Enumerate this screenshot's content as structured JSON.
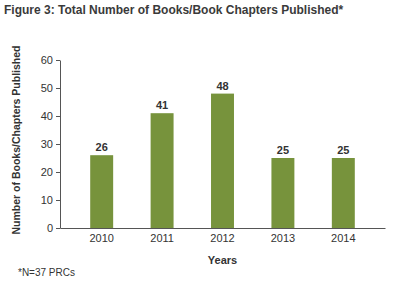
{
  "chart_data": {
    "type": "bar",
    "title": "Figure 3: Total Number of Books/Book Chapters Published*",
    "x_label": "Years",
    "y_label": "Number of Books/Chapters Published",
    "annotations": [
      "*N=37 PRCs"
    ],
    "categories": [
      "2010",
      "2011",
      "2012",
      "2013",
      "2014"
    ],
    "values": [
      26,
      41,
      48,
      25,
      25
    ],
    "color": "#77933c",
    "ylim": [
      0,
      60
    ],
    "yticks": [
      0,
      10,
      20,
      30,
      40,
      50,
      60
    ],
    "grid": false,
    "data_labels": true
  }
}
